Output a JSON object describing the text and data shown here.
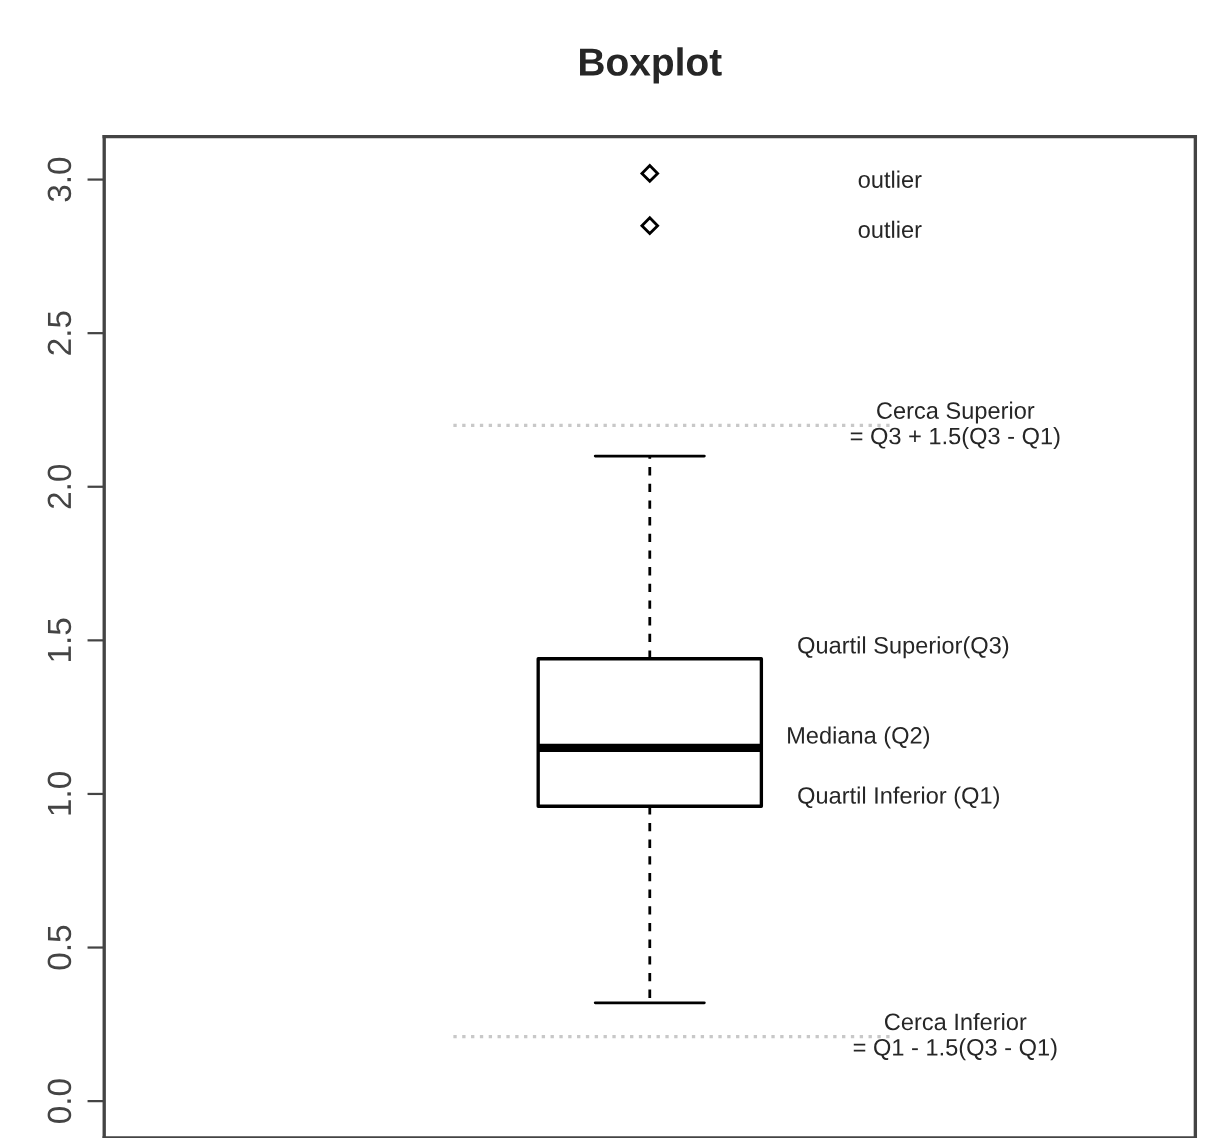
{
  "chart_data": {
    "type": "box",
    "title": "Boxplot",
    "categories": [
      null
    ],
    "boxes": [
      {
        "low": 0.32,
        "q1": 0.96,
        "median": 1.15,
        "q3": 1.44,
        "high": 2.1,
        "outliers": [
          2.85,
          3.02
        ]
      }
    ],
    "ylim": [
      -0.12,
      3.14
    ],
    "yticks": [
      {
        "value": 0,
        "label": "0.0"
      },
      0.5,
      {
        "value": 1,
        "label": "1.0"
      },
      1.5,
      {
        "value": 2,
        "label": "2.0"
      },
      2.5,
      {
        "value": 3,
        "label": "3.0"
      }
    ],
    "ref_lines": [
      {
        "axis": "y",
        "value": 2.2,
        "label": "Cerca Superior\n= Q3 + 1.5(Q3 - Q1)",
        "color": "#c8c8c8",
        "line_style": "dotted"
      },
      {
        "axis": "y",
        "value": 0.21,
        "label": "Cerca Inferior\n= Q1 - 1.5(Q3 - Q1)",
        "color": "#c8c8c8",
        "line_style": "dotted"
      }
    ],
    "annotations": [
      "outlier",
      "outlier",
      "Quartil Superior(Q3)",
      "Mediana (Q2)",
      "Quartil Inferior (Q1)"
    ],
    "grid": false,
    "tick_labels": "y"
  }
}
